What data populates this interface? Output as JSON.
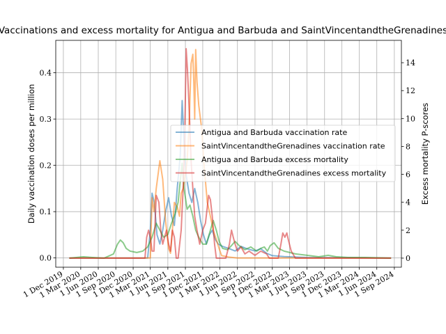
{
  "chart_data": {
    "type": "line",
    "title": "Vaccinations and excess mortality for Antigua and Barbuda and SaintVincentandtheGrenadines",
    "ylabel_left": "Daily vaccination doses per million",
    "ylabel_right": "Excess mortality P-scores",
    "ylim_left": [
      -0.02,
      0.47
    ],
    "ylim_right": [
      -0.65,
      15.6
    ],
    "left_ticks": [
      "0.0",
      "0.1",
      "0.2",
      "0.3",
      "0.4"
    ],
    "right_ticks": [
      "0",
      "2",
      "4",
      "6",
      "8",
      "10",
      "12",
      "14"
    ],
    "x_ticks": [
      "1 Dec 2019",
      "1 Mar 2020",
      "1 Jun 2020",
      "1 Sep 2020",
      "1 Dec 2020",
      "1 Mar 2021",
      "1 Jun 2021",
      "1 Sep 2021",
      "1 Dec 2021",
      "1 Mar 2022",
      "1 Jun 2022",
      "1 Sep 2022",
      "1 Dec 2022",
      "1 Mar 2023",
      "1 Jun 2023",
      "1 Sep 2023",
      "1 Dec 2023",
      "1 Mar 2024",
      "1 Jun 2024",
      "1 Sep 2024"
    ],
    "grid": true,
    "legend_position": "center-right",
    "series": [
      {
        "name": "Antigua and Barbuda vaccination rate",
        "axis": "left",
        "color": "#1f77b4",
        "points": [
          [
            "2020-01-01",
            0
          ],
          [
            "2021-02-15",
            0
          ],
          [
            "2021-03-01",
            0.06
          ],
          [
            "2021-03-10",
            0.14
          ],
          [
            "2021-03-22",
            0.12
          ],
          [
            "2021-04-05",
            0.05
          ],
          [
            "2021-04-20",
            0.03
          ],
          [
            "2021-05-05",
            0.06
          ],
          [
            "2021-05-20",
            0.1
          ],
          [
            "2021-06-05",
            0.13
          ],
          [
            "2021-06-20",
            0.09
          ],
          [
            "2021-07-05",
            0.07
          ],
          [
            "2021-07-20",
            0.15
          ],
          [
            "2021-08-05",
            0.22
          ],
          [
            "2021-08-15",
            0.34
          ],
          [
            "2021-08-25",
            0.25
          ],
          [
            "2021-09-05",
            0.18
          ],
          [
            "2021-09-20",
            0.14
          ],
          [
            "2021-10-05",
            0.12
          ],
          [
            "2021-10-20",
            0.15
          ],
          [
            "2021-11-05",
            0.12
          ],
          [
            "2021-11-20",
            0.08
          ],
          [
            "2021-12-05",
            0.05
          ],
          [
            "2021-12-20",
            0.03
          ],
          [
            "2022-01-05",
            0.05
          ],
          [
            "2022-01-20",
            0.06
          ],
          [
            "2022-02-05",
            0.04
          ],
          [
            "2022-02-20",
            0.03
          ],
          [
            "2022-03-15",
            0.025
          ],
          [
            "2022-04-20",
            0.02
          ],
          [
            "2022-05-20",
            0.015
          ],
          [
            "2022-06-20",
            0.025
          ],
          [
            "2022-07-20",
            0.02
          ],
          [
            "2022-09-01",
            0.015
          ],
          [
            "2022-10-01",
            0.02
          ],
          [
            "2022-11-01",
            0.01
          ],
          [
            "2022-12-01",
            0.005
          ],
          [
            "2023-02-01",
            0.003
          ],
          [
            "2023-06-01",
            0.001
          ],
          [
            "2024-08-15",
            0
          ]
        ]
      },
      {
        "name": "SaintVincentandtheGrenadines vaccination rate",
        "axis": "left",
        "color": "#ff7f0e",
        "points": [
          [
            "2020-01-01",
            0
          ],
          [
            "2021-03-01",
            0
          ],
          [
            "2021-03-10",
            0.13
          ],
          [
            "2021-03-20",
            0.1
          ],
          [
            "2021-04-01",
            0.15
          ],
          [
            "2021-04-20",
            0.21
          ],
          [
            "2021-05-05",
            0.17
          ],
          [
            "2021-05-20",
            0.08
          ],
          [
            "2021-06-05",
            0.02
          ],
          [
            "2021-06-15",
            0.01
          ],
          [
            "2021-06-25",
            0.06
          ],
          [
            "2021-07-05",
            0.12
          ],
          [
            "2021-07-20",
            0.11
          ],
          [
            "2021-08-01",
            0.09
          ],
          [
            "2021-08-10",
            0.14
          ],
          [
            "2021-08-20",
            0.15
          ],
          [
            "2021-09-01",
            0.18
          ],
          [
            "2021-09-10",
            0.21
          ],
          [
            "2021-09-20",
            0.28
          ],
          [
            "2021-10-01",
            0.42
          ],
          [
            "2021-10-10",
            0.44
          ],
          [
            "2021-10-15",
            0.38
          ],
          [
            "2021-10-20",
            0.3
          ],
          [
            "2021-10-25",
            0.45
          ],
          [
            "2021-11-01",
            0.38
          ],
          [
            "2021-11-10",
            0.33
          ],
          [
            "2021-11-25",
            0.28
          ],
          [
            "2021-12-10",
            0.19
          ],
          [
            "2021-12-25",
            0.12
          ],
          [
            "2022-01-10",
            0.09
          ],
          [
            "2022-01-25",
            0.06
          ],
          [
            "2022-02-10",
            0.04
          ],
          [
            "2022-02-25",
            0.02
          ],
          [
            "2022-03-10",
            0.005
          ],
          [
            "2022-04-15",
            0.002
          ],
          [
            "2022-06-01",
            0
          ],
          [
            "2024-08-15",
            0
          ]
        ]
      },
      {
        "name": "Antigua and Barbuda excess mortality",
        "axis": "right",
        "color": "#2ca02c",
        "points": [
          [
            "2020-01-01",
            0
          ],
          [
            "2020-03-15",
            0.1
          ],
          [
            "2020-05-01",
            0.05
          ],
          [
            "2020-07-01",
            0.0
          ],
          [
            "2020-08-20",
            0.3
          ],
          [
            "2020-09-10",
            1.0
          ],
          [
            "2020-09-25",
            1.3
          ],
          [
            "2020-10-10",
            1.1
          ],
          [
            "2020-10-25",
            0.7
          ],
          [
            "2020-11-15",
            0.5
          ],
          [
            "2020-12-20",
            0.4
          ],
          [
            "2021-01-20",
            0.5
          ],
          [
            "2021-02-15",
            0.8
          ],
          [
            "2021-03-10",
            1.5
          ],
          [
            "2021-04-01",
            2.5
          ],
          [
            "2021-04-20",
            2.0
          ],
          [
            "2021-05-10",
            1.5
          ],
          [
            "2021-06-01",
            1.7
          ],
          [
            "2021-06-20",
            2.5
          ],
          [
            "2021-07-10",
            3.2
          ],
          [
            "2021-07-25",
            4.0
          ],
          [
            "2021-08-05",
            5.5
          ],
          [
            "2021-08-15",
            6.8
          ],
          [
            "2021-08-25",
            5.0
          ],
          [
            "2021-09-10",
            3.5
          ],
          [
            "2021-09-25",
            3.8
          ],
          [
            "2021-10-10",
            3.0
          ],
          [
            "2021-10-25",
            2.0
          ],
          [
            "2021-11-10",
            1.5
          ],
          [
            "2021-12-01",
            1.0
          ],
          [
            "2021-12-20",
            1.0
          ],
          [
            "2022-01-10",
            2.0
          ],
          [
            "2022-01-25",
            2.7
          ],
          [
            "2022-02-10",
            2.0
          ],
          [
            "2022-02-25",
            1.2
          ],
          [
            "2022-03-15",
            0.7
          ],
          [
            "2022-04-10",
            0.6
          ],
          [
            "2022-05-01",
            0.9
          ],
          [
            "2022-05-20",
            1.2
          ],
          [
            "2022-06-10",
            0.9
          ],
          [
            "2022-07-10",
            0.6
          ],
          [
            "2022-08-10",
            0.8
          ],
          [
            "2022-09-10",
            0.5
          ],
          [
            "2022-10-01",
            0.7
          ],
          [
            "2022-10-20",
            0.8
          ],
          [
            "2022-11-05",
            0.5
          ],
          [
            "2022-11-20",
            0.9
          ],
          [
            "2022-12-10",
            1.1
          ],
          [
            "2023-01-01",
            0.7
          ],
          [
            "2023-02-01",
            0.5
          ],
          [
            "2023-04-01",
            0.3
          ],
          [
            "2023-06-01",
            0.2
          ],
          [
            "2023-08-01",
            0.1
          ],
          [
            "2023-09-20",
            0.2
          ],
          [
            "2023-11-01",
            0.1
          ],
          [
            "2024-01-01",
            0.05
          ],
          [
            "2024-04-01",
            0.05
          ],
          [
            "2024-08-15",
            0
          ]
        ]
      },
      {
        "name": "SaintVincentandtheGrenadines excess mortality",
        "axis": "right",
        "color": "#d62728",
        "points": [
          [
            "2020-01-01",
            0
          ],
          [
            "2021-02-01",
            0
          ],
          [
            "2021-02-10",
            1.5
          ],
          [
            "2021-02-20",
            2.0
          ],
          [
            "2021-03-01",
            1.5
          ],
          [
            "2021-03-10",
            0.5
          ],
          [
            "2021-03-20",
            0.5
          ],
          [
            "2021-04-01",
            4.5
          ],
          [
            "2021-04-15",
            4.0
          ],
          [
            "2021-04-25",
            2.0
          ],
          [
            "2021-05-05",
            1.0
          ],
          [
            "2021-05-15",
            1.5
          ],
          [
            "2021-05-25",
            2.0
          ],
          [
            "2021-06-05",
            1.0
          ],
          [
            "2021-06-15",
            0.5
          ],
          [
            "2021-06-25",
            2.0
          ],
          [
            "2021-07-05",
            1.5
          ],
          [
            "2021-07-15",
            0
          ],
          [
            "2021-07-25",
            0
          ],
          [
            "2021-08-10",
            2.0
          ],
          [
            "2021-08-20",
            5.0
          ],
          [
            "2021-08-28",
            8.0
          ],
          [
            "2021-09-05",
            15.0
          ],
          [
            "2021-09-12",
            13.5
          ],
          [
            "2021-09-20",
            11.0
          ],
          [
            "2021-10-01",
            7.0
          ],
          [
            "2021-10-10",
            5.0
          ],
          [
            "2021-10-20",
            3.0
          ],
          [
            "2021-11-01",
            2.0
          ],
          [
            "2021-11-15",
            1.0
          ],
          [
            "2021-12-01",
            2.0
          ],
          [
            "2021-12-15",
            2.5
          ],
          [
            "2022-01-01",
            4.5
          ],
          [
            "2022-01-10",
            4.2
          ],
          [
            "2022-01-20",
            3.0
          ],
          [
            "2022-02-01",
            1.0
          ],
          [
            "2022-02-10",
            0
          ],
          [
            "2022-04-01",
            0
          ],
          [
            "2022-04-20",
            1.0
          ],
          [
            "2022-05-01",
            2.0
          ],
          [
            "2022-05-10",
            1.5
          ],
          [
            "2022-05-20",
            1.0
          ],
          [
            "2022-06-01",
            0.5
          ],
          [
            "2022-06-20",
            0.8
          ],
          [
            "2022-07-10",
            0.3
          ],
          [
            "2022-08-01",
            0.5
          ],
          [
            "2022-09-01",
            0.2
          ],
          [
            "2022-10-01",
            0.5
          ],
          [
            "2022-11-01",
            0.3
          ],
          [
            "2022-11-15",
            0
          ],
          [
            "2023-01-01",
            0
          ],
          [
            "2023-01-15",
            1.0
          ],
          [
            "2023-01-25",
            1.8
          ],
          [
            "2023-02-05",
            1.5
          ],
          [
            "2023-02-15",
            1.8
          ],
          [
            "2023-02-25",
            1.2
          ],
          [
            "2023-03-10",
            0.5
          ],
          [
            "2023-04-01",
            0
          ],
          [
            "2024-08-15",
            0
          ]
        ]
      }
    ]
  }
}
